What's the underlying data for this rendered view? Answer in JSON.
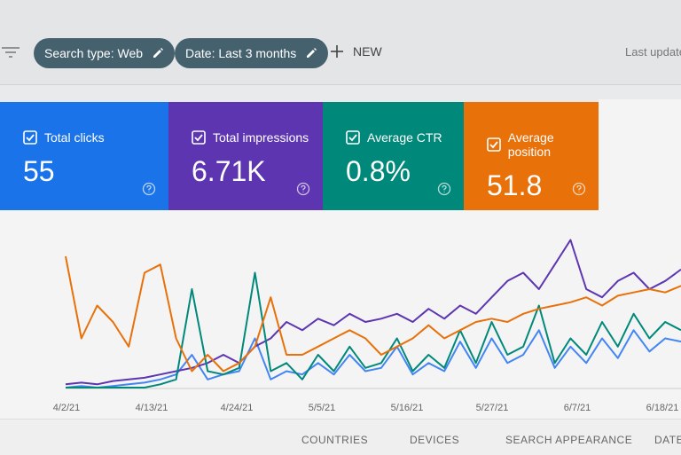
{
  "toolbar": {
    "filters": [
      "Search type: Web",
      "Date: Last 3 months"
    ],
    "new": "NEW",
    "last_updated": "Last updated"
  },
  "metrics": [
    {
      "label": "Total clicks",
      "value": "55",
      "color": "#1a73e8"
    },
    {
      "label": "Total impressions",
      "value": "6.71K",
      "color": "#5e35b1"
    },
    {
      "label": "Average CTR",
      "value": "0.8%",
      "color": "#00897b"
    },
    {
      "label": "Average position",
      "value": "51.8",
      "color": "#e8710a"
    }
  ],
  "chart": {
    "type": "line",
    "x_labels": [
      "4/2/21",
      "4/13/21",
      "4/24/21",
      "5/5/21",
      "5/16/21",
      "5/27/21",
      "6/7/21",
      "6/18/21"
    ],
    "series": [
      {
        "name": "Total clicks",
        "color": "#4285f4",
        "values": [
          0,
          1,
          0,
          1,
          2,
          3,
          5,
          8,
          20,
          5,
          8,
          10,
          30,
          5,
          10,
          8,
          15,
          8,
          20,
          10,
          12,
          25,
          8,
          15,
          10,
          28,
          12,
          30,
          15,
          20,
          35,
          12,
          25,
          15,
          30,
          18,
          35,
          22,
          30,
          28
        ]
      },
      {
        "name": "Total impressions",
        "color": "#5e35b1",
        "values": [
          2,
          3,
          2,
          4,
          5,
          6,
          8,
          10,
          12,
          15,
          20,
          15,
          25,
          30,
          40,
          35,
          42,
          38,
          45,
          40,
          42,
          45,
          40,
          48,
          42,
          50,
          45,
          55,
          65,
          70,
          60,
          75,
          90,
          60,
          55,
          65,
          70,
          60,
          65,
          72
        ]
      },
      {
        "name": "Average CTR",
        "color": "#00897b",
        "values": [
          0,
          0,
          0,
          0,
          0,
          0,
          2,
          5,
          60,
          10,
          8,
          12,
          70,
          10,
          15,
          5,
          20,
          10,
          25,
          12,
          15,
          30,
          10,
          20,
          12,
          35,
          15,
          40,
          20,
          25,
          50,
          15,
          30,
          20,
          40,
          25,
          45,
          30,
          40,
          35
        ]
      },
      {
        "name": "Average position",
        "color": "#e8710a",
        "values": [
          80,
          30,
          50,
          40,
          25,
          70,
          75,
          30,
          10,
          20,
          10,
          15,
          25,
          55,
          20,
          20,
          25,
          30,
          35,
          30,
          20,
          25,
          30,
          38,
          30,
          35,
          40,
          42,
          40,
          45,
          48,
          50,
          52,
          55,
          50,
          56,
          58,
          60,
          58,
          62
        ]
      }
    ]
  },
  "tabs": [
    "COUNTRIES",
    "DEVICES",
    "SEARCH APPEARANCE",
    "DATES"
  ]
}
